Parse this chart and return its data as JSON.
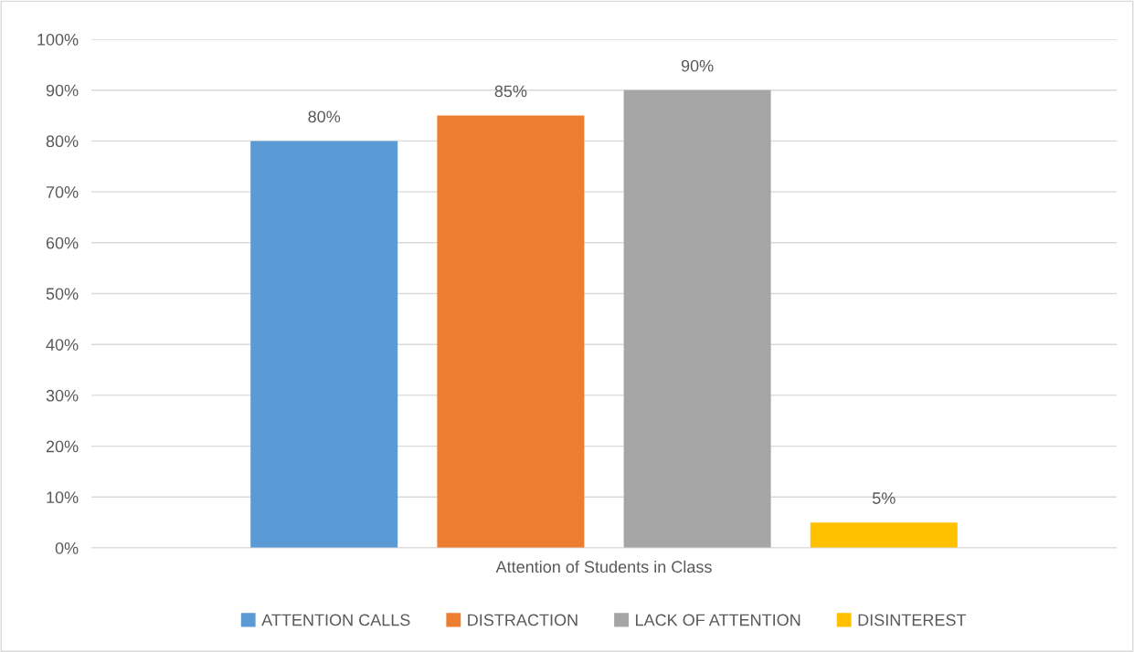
{
  "chart_data": {
    "type": "bar",
    "categories": [
      "Attention of Students in Class"
    ],
    "series": [
      {
        "name": "ATTENTION CALLS",
        "color": "#5b9bd5",
        "values": [
          80
        ],
        "value_labels": [
          "80%"
        ]
      },
      {
        "name": "DISTRACTION",
        "color": "#ed7d31",
        "values": [
          85
        ],
        "value_labels": [
          "85%"
        ]
      },
      {
        "name": "LACK OF ATTENTION",
        "color": "#a5a5a5",
        "values": [
          90
        ],
        "value_labels": [
          "90%"
        ]
      },
      {
        "name": "DISINTEREST",
        "color": "#ffc000",
        "values": [
          5
        ],
        "value_labels": [
          "5%"
        ]
      }
    ],
    "ylim": [
      0,
      100
    ],
    "yticks": [
      {
        "value": 0,
        "label": "0%"
      },
      {
        "value": 10,
        "label": "10%"
      },
      {
        "value": 20,
        "label": "20%"
      },
      {
        "value": 30,
        "label": "30%"
      },
      {
        "value": 40,
        "label": "40%"
      },
      {
        "value": 50,
        "label": "50%"
      },
      {
        "value": 60,
        "label": "60%"
      },
      {
        "value": 70,
        "label": "70%"
      },
      {
        "value": 80,
        "label": "80%"
      },
      {
        "value": 90,
        "label": "90%"
      },
      {
        "value": 100,
        "label": "100%"
      }
    ],
    "grid": "y",
    "legend": "bottom"
  }
}
